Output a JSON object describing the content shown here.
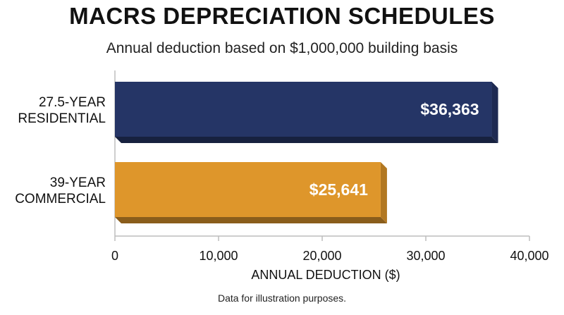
{
  "chart_data": {
    "type": "bar",
    "orientation": "horizontal",
    "title": "MACRS DEPRECIATION SCHEDULES",
    "subtitle": "Annual deduction based on $1,000,000 building basis",
    "categories": [
      "27.5-YEAR RESIDENTIAL",
      "39-YEAR COMMERCIAL"
    ],
    "category_lines": [
      [
        "27.5-YEAR",
        "RESIDENTIAL"
      ],
      [
        "39-YEAR",
        "COMMERCIAL"
      ]
    ],
    "values": [
      36363,
      25641
    ],
    "data_labels": [
      "$36,363",
      "$25,641"
    ],
    "colors": [
      "#253566",
      "#de962b"
    ],
    "xlabel": "ANNUAL DEDUCTION ($)",
    "ylabel": "",
    "xlim": [
      0,
      40000
    ],
    "x_ticks": [
      0,
      10000,
      20000,
      30000,
      40000
    ],
    "x_tick_labels": [
      "0",
      "10,000",
      "20,000",
      "30,000",
      "40,000"
    ],
    "grid": false,
    "legend": "none"
  },
  "footnote": "Data for illustration purposes."
}
